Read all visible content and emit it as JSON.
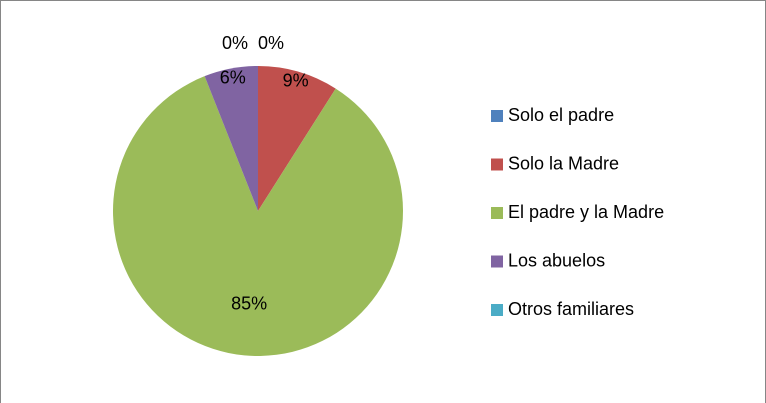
{
  "chart_data": {
    "type": "pie",
    "categories": [
      "Solo el padre",
      "Solo la Madre",
      "El padre y la Madre",
      "Los abuelos",
      "Otros familiares"
    ],
    "values": [
      0,
      9,
      85,
      6,
      0
    ],
    "value_labels": [
      "0%",
      "9%",
      "85%",
      "6%",
      "0%"
    ],
    "colors": [
      "#4f81bd",
      "#c0504d",
      "#9bbb59",
      "#8064a2",
      "#4bacc6"
    ],
    "legend": "right"
  }
}
